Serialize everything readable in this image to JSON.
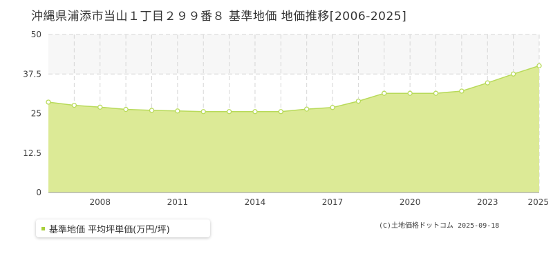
{
  "title": "沖縄県浦添市当山１丁目２９９番８ 基準地価 地価推移[2006-2025]",
  "legend": {
    "label": "基準地価 平均坪単価(万円/坪)"
  },
  "credit": "(C)土地価格ドットコム 2025-09-18",
  "colors": {
    "area_fill": "#dcea96",
    "line": "#b8da5a",
    "point_stroke": "#b8da5a",
    "band": "#f7f7f7",
    "grid": "#d6d6d6",
    "legend_marker": "#a8cf3a"
  },
  "chart_data": {
    "type": "area",
    "title": "沖縄県浦添市当山１丁目２９９番８ 基準地価 地価推移[2006-2025]",
    "xlabel": "",
    "ylabel": "",
    "x": [
      2006,
      2007,
      2008,
      2009,
      2010,
      2011,
      2012,
      2013,
      2014,
      2015,
      2016,
      2017,
      2018,
      2019,
      2020,
      2021,
      2022,
      2023,
      2024,
      2025
    ],
    "series": [
      {
        "name": "基準地価 平均坪単価(万円/坪)",
        "values": [
          28.6,
          27.6,
          27.0,
          26.3,
          26.0,
          25.8,
          25.6,
          25.6,
          25.6,
          25.6,
          26.4,
          26.9,
          28.9,
          31.4,
          31.4,
          31.4,
          32.1,
          34.7,
          37.5,
          40.1
        ]
      }
    ],
    "xlim": [
      2006,
      2025
    ],
    "ylim": [
      0,
      50
    ],
    "y_ticks": [
      "0",
      "12.5",
      "25",
      "37.5",
      "50"
    ],
    "x_tick_labels": [
      "2008",
      "2011",
      "2014",
      "2017",
      "2020",
      "2023",
      "2025"
    ],
    "x_tick_values": [
      2008,
      2011,
      2014,
      2017,
      2020,
      2023,
      2025
    ],
    "grid": true,
    "legend_position": "bottom-left"
  }
}
